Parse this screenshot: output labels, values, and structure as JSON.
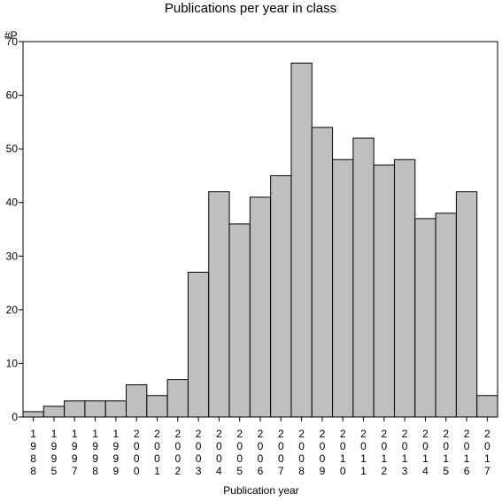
{
  "chart_data": {
    "type": "bar",
    "title": "Publications per year in class",
    "ylabel": "#P",
    "xlabel": "Publication year",
    "ylim": [
      0,
      70
    ],
    "yticks": [
      0,
      10,
      20,
      30,
      40,
      50,
      60,
      70
    ],
    "grid": false,
    "legend": "none",
    "bar_color": "#bfbfbf",
    "categories": [
      "1988",
      "1995",
      "1997",
      "1998",
      "1999",
      "2000",
      "2001",
      "2002",
      "2003",
      "2004",
      "2005",
      "2006",
      "2007",
      "2008",
      "2009",
      "2010",
      "2011",
      "2012",
      "2013",
      "2014",
      "2015",
      "2016",
      "2017"
    ],
    "values": [
      1,
      2,
      3,
      3,
      3,
      6,
      4,
      7,
      27,
      42,
      36,
      41,
      45,
      66,
      54,
      48,
      52,
      47,
      48,
      37,
      38,
      42,
      4
    ]
  }
}
